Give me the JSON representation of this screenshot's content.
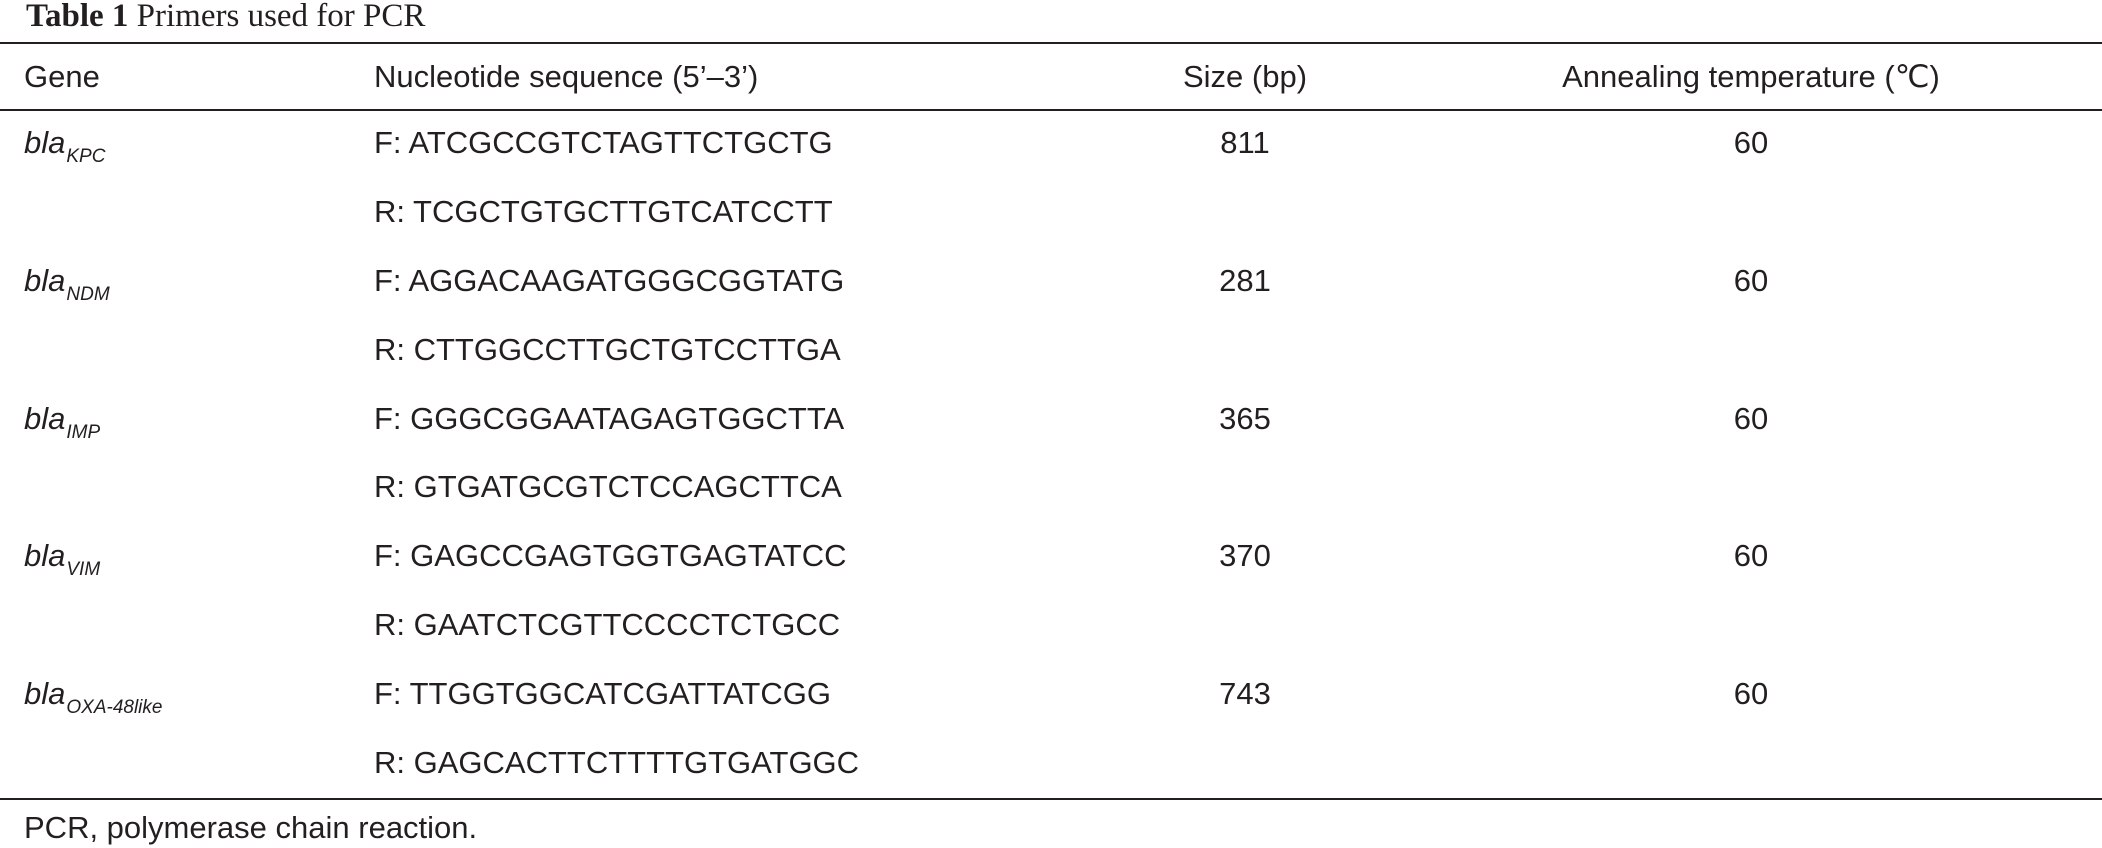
{
  "caption": {
    "label": "Table 1",
    "text": "Primers used for PCR"
  },
  "columns": {
    "gene": "Gene",
    "sequence": "Nucleotide sequence (5’–3’)",
    "size": "Size (bp)",
    "annealing": "Annealing temperature (",
    "annealing_unit": "℃",
    "annealing_close": ")"
  },
  "rows": [
    {
      "gene": "bla",
      "gene_sub": "KPC",
      "forward": "F: ATCGCCGTCTAGTTCTGCTG",
      "reverse": "R: TCGCTGTGCTTGTCATCCTT",
      "size": "811",
      "annealing": "60"
    },
    {
      "gene": "bla",
      "gene_sub": "NDM",
      "forward": "F: AGGACAAGATGGGCGGTATG",
      "reverse": "R: CTTGGCCTTGCTGTCCTTGA",
      "size": "281",
      "annealing": "60"
    },
    {
      "gene": "bla",
      "gene_sub": "IMP",
      "forward": "F: GGGCGGAATAGAGTGGCTTA",
      "reverse": "R: GTGATGCGTCTCCAGCTTCA",
      "size": "365",
      "annealing": "60"
    },
    {
      "gene": "bla",
      "gene_sub": "VIM",
      "forward": "F: GAGCCGAGTGGTGAGTATCC",
      "reverse": "R: GAATCTCGTTCCCCTCTGCC",
      "size": "370",
      "annealing": "60"
    },
    {
      "gene": "bla",
      "gene_sub": "OXA-48like",
      "forward": "F: TTGGTGGCATCGATTATCGG",
      "reverse": "R: GAGCACTTCTTTTGTGATGGC",
      "size": "743",
      "annealing": "60"
    }
  ],
  "footnote": "PCR, polymerase chain reaction."
}
